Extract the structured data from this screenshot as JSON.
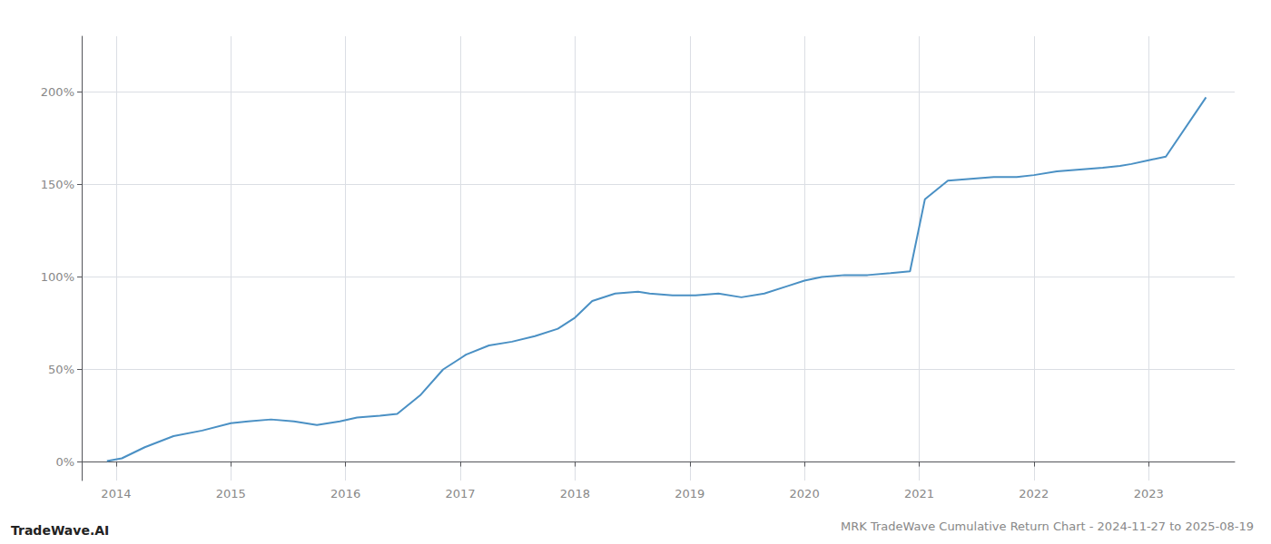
{
  "chart_data": {
    "type": "line",
    "title": "MRK TradeWave Cumulative Return Chart - 2024-11-27 to 2025-08-19",
    "annotations": [
      "TradeWave.AI"
    ],
    "color": "#4a90c4",
    "x": [
      2013.92,
      2014.05,
      2014.25,
      2014.5,
      2014.75,
      2015.0,
      2015.15,
      2015.35,
      2015.55,
      2015.75,
      2015.95,
      2016.1,
      2016.3,
      2016.45,
      2016.65,
      2016.85,
      2017.05,
      2017.25,
      2017.45,
      2017.65,
      2017.85,
      2018.0,
      2018.15,
      2018.35,
      2018.55,
      2018.65,
      2018.85,
      2019.05,
      2019.25,
      2019.45,
      2019.65,
      2019.85,
      2020.0,
      2020.15,
      2020.35,
      2020.55,
      2020.75,
      2020.92,
      2021.05,
      2021.25,
      2021.45,
      2021.65,
      2021.85,
      2022.0,
      2022.2,
      2022.4,
      2022.6,
      2022.75,
      2022.85,
      2023.0,
      2023.15,
      2023.5
    ],
    "values": [
      0.5,
      2,
      8,
      14,
      17,
      21,
      22,
      23,
      22,
      20,
      22,
      24,
      25,
      26,
      36,
      50,
      58,
      63,
      65,
      68,
      72,
      78,
      87,
      91,
      92,
      91,
      90,
      90,
      91,
      89,
      91,
      95,
      98,
      100,
      101,
      101,
      102,
      103,
      142,
      152,
      153,
      154,
      154,
      155,
      157,
      158,
      159,
      160,
      161,
      163,
      165,
      197
    ],
    "xlim": [
      2013.7,
      2023.75
    ],
    "xticks": [
      2014,
      2015,
      2016,
      2017,
      2018,
      2019,
      2020,
      2021,
      2022,
      2023
    ],
    "ylim": [
      -10,
      230
    ],
    "yticks": [
      {
        "value": 0,
        "label": "0%"
      },
      {
        "value": 50,
        "label": "50%"
      },
      {
        "value": 100,
        "label": "100%"
      },
      {
        "value": 150,
        "label": "150%"
      },
      {
        "value": 200,
        "label": "200%"
      }
    ],
    "grid": true
  }
}
